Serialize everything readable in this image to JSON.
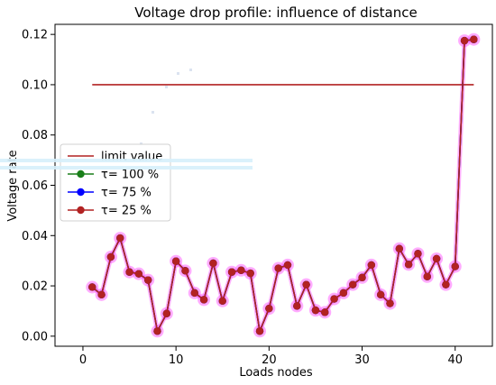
{
  "chart_data": {
    "type": "line",
    "title": "Voltage drop profile: influence of distance",
    "xlabel": "Loads nodes",
    "ylabel": "Voltage rate",
    "xlim": [
      -3,
      44
    ],
    "ylim": [
      -0.004,
      0.124
    ],
    "x_ticks": [
      0,
      10,
      20,
      30,
      40
    ],
    "y_ticks": [
      0.0,
      0.02,
      0.04,
      0.06,
      0.08,
      0.1,
      0.12
    ],
    "y_tick_labels": [
      "0.00",
      "0.02",
      "0.04",
      "0.06",
      "0.08",
      "0.10",
      "0.12"
    ],
    "grid": false,
    "legend_position": "center-left",
    "limit": {
      "name": "limit value",
      "value": 0.1,
      "x": [
        1,
        42
      ],
      "color": "#b22222"
    },
    "x": [
      1,
      2,
      3,
      4,
      5,
      6,
      7,
      8,
      9,
      10,
      11,
      12,
      13,
      14,
      15,
      16,
      17,
      18,
      19,
      20,
      21,
      22,
      23,
      24,
      25,
      26,
      27,
      28,
      29,
      30,
      31,
      32,
      33,
      34,
      35,
      36,
      37,
      38,
      39,
      40,
      41,
      42
    ],
    "series": [
      {
        "name": "τ= 100 %",
        "color": "#1a7f1a",
        "values": [
          0.0195,
          0.0165,
          0.0315,
          0.039,
          0.0255,
          0.0248,
          0.0223,
          0.002,
          0.009,
          0.0298,
          0.026,
          0.0172,
          0.0145,
          0.029,
          0.014,
          0.0255,
          0.0262,
          0.025,
          0.002,
          0.011,
          0.027,
          0.0283,
          0.012,
          0.0205,
          0.0103,
          0.0095,
          0.0148,
          0.0172,
          0.0205,
          0.0233,
          0.0283,
          0.0165,
          0.013,
          0.0348,
          0.0285,
          0.0328,
          0.0237,
          0.0308,
          0.0205,
          0.0277,
          0.1175,
          0.118
        ]
      },
      {
        "name": "τ= 75 %",
        "color": "#0000ff",
        "values": [
          0.0195,
          0.0165,
          0.0315,
          0.039,
          0.0255,
          0.0248,
          0.0223,
          0.002,
          0.009,
          0.0298,
          0.026,
          0.0172,
          0.0145,
          0.029,
          0.014,
          0.0255,
          0.0262,
          0.025,
          0.002,
          0.011,
          0.027,
          0.0283,
          0.012,
          0.0205,
          0.0103,
          0.0095,
          0.0148,
          0.0172,
          0.0205,
          0.0233,
          0.0283,
          0.0165,
          0.013,
          0.0348,
          0.0285,
          0.0328,
          0.0237,
          0.0308,
          0.0205,
          0.0277,
          0.1175,
          0.118
        ]
      },
      {
        "name": "τ= 25 %",
        "color": "#b22222",
        "values": [
          0.0195,
          0.0165,
          0.0315,
          0.039,
          0.0255,
          0.0248,
          0.0223,
          0.002,
          0.009,
          0.0298,
          0.026,
          0.0172,
          0.0145,
          0.029,
          0.014,
          0.0255,
          0.0262,
          0.025,
          0.002,
          0.011,
          0.027,
          0.0283,
          0.012,
          0.0205,
          0.0103,
          0.0095,
          0.0148,
          0.0172,
          0.0205,
          0.0233,
          0.0283,
          0.0165,
          0.013,
          0.0348,
          0.0285,
          0.0328,
          0.0237,
          0.0308,
          0.0205,
          0.0277,
          0.1175,
          0.118
        ]
      }
    ],
    "highlight_color": "#ff66ff"
  }
}
